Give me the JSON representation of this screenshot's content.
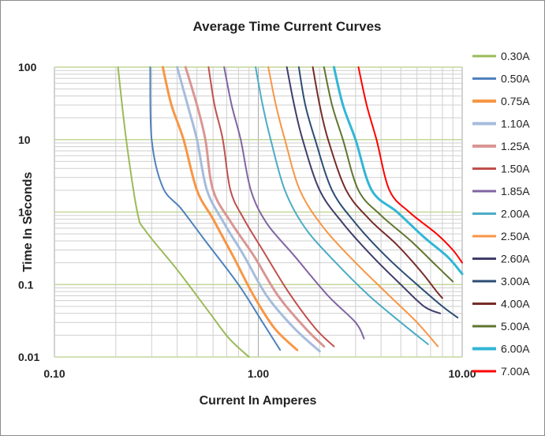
{
  "chart_data": {
    "type": "line",
    "title": "Average Time Current Curves",
    "xlabel": "Current In Amperes",
    "ylabel": "Time In Seconds",
    "x_scale": "log",
    "y_scale": "log",
    "xlim": [
      0.1,
      10
    ],
    "ylim": [
      0.01,
      100
    ],
    "x_ticks": [
      "0.10",
      "1.00",
      "10.00"
    ],
    "y_ticks": [
      "100",
      "10",
      "1",
      "0.1",
      "0.01"
    ],
    "grid": true,
    "legend_position": "right",
    "series": [
      {
        "name": "0.30A",
        "color": "#9bbb59",
        "width": 2,
        "points": [
          [
            0.205,
            100
          ],
          [
            0.225,
            10
          ],
          [
            0.255,
            1
          ],
          [
            0.28,
            0.55
          ],
          [
            0.4,
            0.16
          ],
          [
            0.58,
            0.04
          ],
          [
            0.72,
            0.018
          ],
          [
            0.9,
            0.01
          ]
        ]
      },
      {
        "name": "0.50A",
        "color": "#4f81bd",
        "width": 2,
        "points": [
          [
            0.295,
            100
          ],
          [
            0.3,
            10
          ],
          [
            0.34,
            2.2
          ],
          [
            0.42,
            1.1
          ],
          [
            0.55,
            0.4
          ],
          [
            0.8,
            0.1
          ],
          [
            1.05,
            0.03
          ],
          [
            1.28,
            0.0125
          ]
        ]
      },
      {
        "name": "0.75A",
        "color": "#f79646",
        "width": 3,
        "points": [
          [
            0.34,
            100
          ],
          [
            0.375,
            30
          ],
          [
            0.43,
            10
          ],
          [
            0.5,
            2
          ],
          [
            0.6,
            0.8
          ],
          [
            0.75,
            0.25
          ],
          [
            0.95,
            0.07
          ],
          [
            1.2,
            0.025
          ],
          [
            1.55,
            0.0125
          ]
        ]
      },
      {
        "name": "1.10A",
        "color": "#a6bcdd",
        "width": 3,
        "points": [
          [
            0.4,
            100
          ],
          [
            0.45,
            30
          ],
          [
            0.5,
            10
          ],
          [
            0.56,
            2
          ],
          [
            0.68,
            0.7
          ],
          [
            0.85,
            0.25
          ],
          [
            1.1,
            0.07
          ],
          [
            1.5,
            0.025
          ],
          [
            2.0,
            0.012
          ]
        ]
      },
      {
        "name": "1.25A",
        "color": "#d99694",
        "width": 3,
        "points": [
          [
            0.44,
            100
          ],
          [
            0.5,
            30
          ],
          [
            0.55,
            10
          ],
          [
            0.6,
            2
          ],
          [
            0.74,
            0.7
          ],
          [
            0.95,
            0.25
          ],
          [
            1.25,
            0.07
          ],
          [
            1.7,
            0.025
          ],
          [
            2.1,
            0.014
          ]
        ]
      },
      {
        "name": "1.50A",
        "color": "#c0504d",
        "width": 2,
        "points": [
          [
            0.57,
            100
          ],
          [
            0.61,
            30
          ],
          [
            0.67,
            10
          ],
          [
            0.73,
            2
          ],
          [
            0.85,
            0.8
          ],
          [
            1.05,
            0.3
          ],
          [
            1.4,
            0.08
          ],
          [
            1.9,
            0.025
          ],
          [
            2.35,
            0.014
          ]
        ]
      },
      {
        "name": "1.85A",
        "color": "#8064a2",
        "width": 2,
        "points": [
          [
            0.68,
            100
          ],
          [
            0.74,
            30
          ],
          [
            0.82,
            10
          ],
          [
            0.92,
            2
          ],
          [
            1.1,
            0.7
          ],
          [
            1.5,
            0.25
          ],
          [
            2.2,
            0.07
          ],
          [
            3.0,
            0.03
          ],
          [
            3.3,
            0.018
          ]
        ]
      },
      {
        "name": "2.00A",
        "color": "#4bacc6",
        "width": 2,
        "points": [
          [
            0.97,
            100
          ],
          [
            1.05,
            30
          ],
          [
            1.15,
            10
          ],
          [
            1.35,
            2
          ],
          [
            1.7,
            0.6
          ],
          [
            2.4,
            0.2
          ],
          [
            3.5,
            0.07
          ],
          [
            5.0,
            0.03
          ],
          [
            6.8,
            0.015
          ]
        ]
      },
      {
        "name": "2.50A",
        "color": "#f79646",
        "width": 2,
        "points": [
          [
            1.12,
            100
          ],
          [
            1.22,
            30
          ],
          [
            1.35,
            10
          ],
          [
            1.6,
            2
          ],
          [
            2.1,
            0.6
          ],
          [
            3.0,
            0.2
          ],
          [
            4.4,
            0.07
          ],
          [
            6.0,
            0.03
          ],
          [
            7.6,
            0.014
          ]
        ]
      },
      {
        "name": "2.60A",
        "color": "#3f3d6b",
        "width": 2,
        "points": [
          [
            1.38,
            100
          ],
          [
            1.5,
            30
          ],
          [
            1.65,
            10
          ],
          [
            2.0,
            2
          ],
          [
            2.6,
            0.7
          ],
          [
            3.6,
            0.25
          ],
          [
            5.0,
            0.1
          ],
          [
            6.5,
            0.05
          ],
          [
            7.8,
            0.04
          ]
        ]
      },
      {
        "name": "3.00A",
        "color": "#2c4d75",
        "width": 2,
        "points": [
          [
            1.58,
            100
          ],
          [
            1.7,
            30
          ],
          [
            1.9,
            10
          ],
          [
            2.3,
            2
          ],
          [
            3.0,
            0.7
          ],
          [
            4.2,
            0.25
          ],
          [
            6.0,
            0.1
          ],
          [
            8.0,
            0.05
          ],
          [
            9.5,
            0.035
          ]
        ]
      },
      {
        "name": "4.00A",
        "color": "#772c2a",
        "width": 2,
        "points": [
          [
            1.85,
            100
          ],
          [
            2.0,
            30
          ],
          [
            2.2,
            10
          ],
          [
            2.7,
            2
          ],
          [
            3.5,
            0.8
          ],
          [
            4.8,
            0.35
          ],
          [
            6.3,
            0.15
          ],
          [
            7.5,
            0.08
          ],
          [
            8.0,
            0.065
          ]
        ]
      },
      {
        "name": "5.00A",
        "color": "#5f7530",
        "width": 2,
        "points": [
          [
            2.1,
            100
          ],
          [
            2.3,
            30
          ],
          [
            2.6,
            10
          ],
          [
            3.1,
            2
          ],
          [
            4.0,
            0.9
          ],
          [
            5.6,
            0.4
          ],
          [
            7.5,
            0.18
          ],
          [
            9.0,
            0.11
          ]
        ]
      },
      {
        "name": "6.00A",
        "color": "#31b6d6",
        "width": 3,
        "points": [
          [
            2.35,
            100
          ],
          [
            2.6,
            30
          ],
          [
            3.0,
            10
          ],
          [
            3.6,
            2
          ],
          [
            4.8,
            1
          ],
          [
            6.5,
            0.45
          ],
          [
            8.5,
            0.24
          ],
          [
            10,
            0.14
          ]
        ]
      },
      {
        "name": "7.00A",
        "color": "#ff0000",
        "width": 2,
        "points": [
          [
            3.1,
            100
          ],
          [
            3.4,
            30
          ],
          [
            3.8,
            10
          ],
          [
            4.4,
            2
          ],
          [
            5.5,
            1
          ],
          [
            7.5,
            0.5
          ],
          [
            9.0,
            0.3
          ],
          [
            10,
            0.2
          ]
        ]
      }
    ]
  }
}
